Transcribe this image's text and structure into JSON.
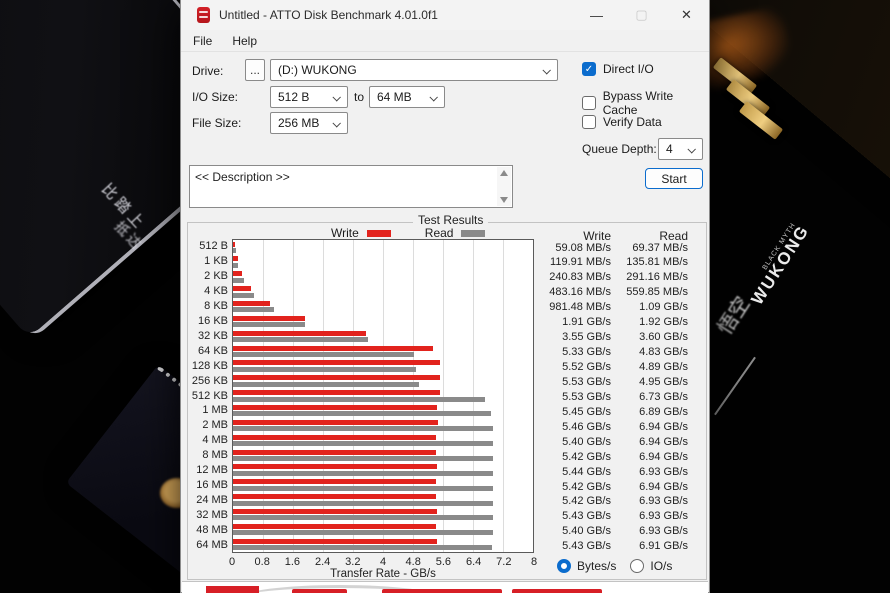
{
  "window": {
    "title": "Untitled - ATTO Disk Benchmark 4.01.0f1",
    "menu": {
      "file": "File",
      "help": "Help"
    },
    "controls": {
      "minimize": "—",
      "maximize": "",
      "close": "✕"
    }
  },
  "form": {
    "drive_label": "Drive:",
    "browse_label": "...",
    "drive_value": "(D:) WUKONG",
    "io_size_label": "I/O Size:",
    "io_size_from": "512 B",
    "to_label": "to",
    "io_size_to": "64 MB",
    "file_size_label": "File Size:",
    "file_size_value": "256 MB",
    "direct_io": {
      "label": "Direct I/O",
      "checked": true,
      "check_glyph": "✓"
    },
    "bypass_write_cache": {
      "label": "Bypass Write Cache",
      "checked": false
    },
    "verify_data": {
      "label": "Verify Data",
      "checked": false
    },
    "queue_depth_label": "Queue Depth:",
    "queue_depth_value": "4",
    "description_text": "<< Description >>",
    "start_label": "Start"
  },
  "results": {
    "group_title": "Test Results",
    "legend_write": "Write",
    "legend_read": "Read",
    "col_write": "Write",
    "col_read": "Read",
    "radio_bytes": "Bytes/s",
    "radio_ios": "IO/s",
    "radio_selected": "Bytes/s",
    "write_color": "#e2231d",
    "read_color": "#8a8a8a"
  },
  "chart_data": {
    "type": "bar",
    "orientation": "horizontal",
    "title": "Test Results",
    "xlabel": "Transfer Rate - GB/s",
    "xlim": [
      0,
      8
    ],
    "xtick_labels": [
      "0",
      "0.8",
      "1.6",
      "2.4",
      "3.2",
      "4",
      "4.8",
      "5.6",
      "6.4",
      "7.2",
      "8"
    ],
    "grid": true,
    "legend_position": "top",
    "categories": [
      "512 B",
      "1 KB",
      "2 KB",
      "4 KB",
      "8 KB",
      "16 KB",
      "32 KB",
      "64 KB",
      "128 KB",
      "256 KB",
      "512 KB",
      "1 MB",
      "2 MB",
      "4 MB",
      "8 MB",
      "12 MB",
      "16 MB",
      "24 MB",
      "32 MB",
      "48 MB",
      "64 MB"
    ],
    "series": [
      {
        "name": "Write",
        "color": "#e2231d",
        "gbps": [
          0.059,
          0.12,
          0.241,
          0.483,
          0.981,
          1.91,
          3.55,
          5.33,
          5.52,
          5.53,
          5.53,
          5.45,
          5.46,
          5.4,
          5.42,
          5.44,
          5.42,
          5.42,
          5.43,
          5.4,
          5.43
        ],
        "labels": [
          "59.08 MB/s",
          "119.91 MB/s",
          "240.83 MB/s",
          "483.16 MB/s",
          "981.48 MB/s",
          "1.91 GB/s",
          "3.55 GB/s",
          "5.33 GB/s",
          "5.52 GB/s",
          "5.53 GB/s",
          "5.53 GB/s",
          "5.45 GB/s",
          "5.46 GB/s",
          "5.40 GB/s",
          "5.42 GB/s",
          "5.44 GB/s",
          "5.42 GB/s",
          "5.42 GB/s",
          "5.43 GB/s",
          "5.40 GB/s",
          "5.43 GB/s"
        ]
      },
      {
        "name": "Read",
        "color": "#8a8a8a",
        "gbps": [
          0.069,
          0.136,
          0.291,
          0.56,
          1.09,
          1.92,
          3.6,
          4.83,
          4.89,
          4.95,
          6.73,
          6.89,
          6.94,
          6.94,
          6.94,
          6.93,
          6.94,
          6.93,
          6.93,
          6.93,
          6.91
        ],
        "labels": [
          "69.37 MB/s",
          "135.81 MB/s",
          "291.16 MB/s",
          "559.85 MB/s",
          "1.09 GB/s",
          "1.92 GB/s",
          "3.60 GB/s",
          "4.83 GB/s",
          "4.89 GB/s",
          "4.95 GB/s",
          "6.73 GB/s",
          "6.89 GB/s",
          "6.94 GB/s",
          "6.94 GB/s",
          "6.94 GB/s",
          "6.93 GB/s",
          "6.94 GB/s",
          "6.93 GB/s",
          "6.93 GB/s",
          "6.93 GB/s",
          "6.91 GB/s"
        ]
      }
    ]
  },
  "background": {
    "left_card_text_line1": "比踏上",
    "left_card_text_line2": "抵达",
    "right_card_brand_small": "BLACK MYTH",
    "right_card_brand": "WUKONG",
    "right_card_script": "悟空"
  }
}
